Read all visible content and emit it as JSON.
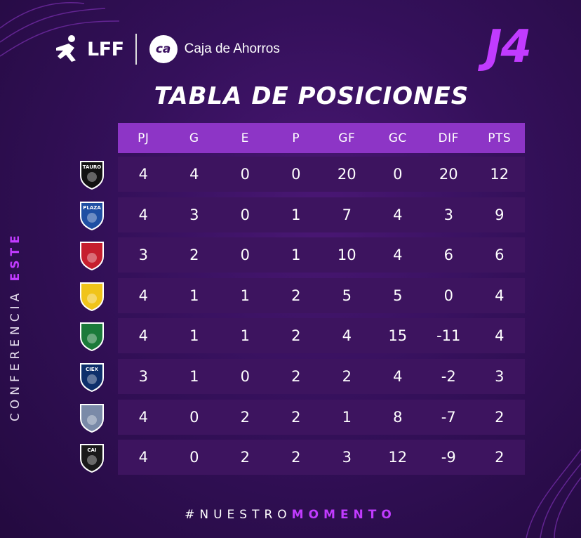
{
  "header": {
    "league_logo_text": "LFF",
    "sponsor_logo_text": "ca",
    "sponsor_name": "Caja de Ahorros",
    "jornada": "J4"
  },
  "title": "TABLA DE POSICIONES",
  "conference": {
    "label": "CONFERENCIA ",
    "name": "ESTE"
  },
  "columns": [
    "PJ",
    "G",
    "E",
    "P",
    "GF",
    "GC",
    "DIF",
    "PTS"
  ],
  "rows": [
    {
      "crest": "tauro-crest",
      "crest_text": "TAURO",
      "color": "#111111",
      "values": [
        "4",
        "4",
        "0",
        "0",
        "20",
        "0",
        "20",
        "12"
      ]
    },
    {
      "crest": "plaza-crest",
      "crest_text": "PLAZA",
      "color": "#1f4fa3",
      "values": [
        "4",
        "3",
        "0",
        "1",
        "7",
        "4",
        "3",
        "9"
      ]
    },
    {
      "crest": "sporting-crest",
      "crest_text": "",
      "color": "#c61e2e",
      "values": [
        "3",
        "2",
        "0",
        "1",
        "10",
        "4",
        "6",
        "6"
      ]
    },
    {
      "crest": "chorrillo-crest",
      "crest_text": "",
      "color": "#f0c419",
      "values": [
        "4",
        "1",
        "1",
        "2",
        "5",
        "5",
        "0",
        "4"
      ]
    },
    {
      "crest": "alianza-crest",
      "crest_text": "",
      "color": "#1b7a3a",
      "values": [
        "4",
        "1",
        "1",
        "2",
        "4",
        "15",
        "-11",
        "4"
      ]
    },
    {
      "crest": "ciex-crest",
      "crest_text": "CIEX",
      "color": "#0d2f6b",
      "values": [
        "3",
        "1",
        "0",
        "2",
        "2",
        "4",
        "-2",
        "3"
      ]
    },
    {
      "crest": "panama-crest",
      "crest_text": "",
      "color": "#7a8aa8",
      "values": [
        "4",
        "0",
        "2",
        "2",
        "1",
        "8",
        "-7",
        "2"
      ]
    },
    {
      "crest": "cai-crest",
      "crest_text": "CAI",
      "color": "#1a1a1a",
      "values": [
        "4",
        "0",
        "2",
        "2",
        "3",
        "12",
        "-9",
        "2"
      ]
    }
  ],
  "footer": {
    "prefix": "#NUESTRO",
    "highlight": "MOMENTO"
  }
}
